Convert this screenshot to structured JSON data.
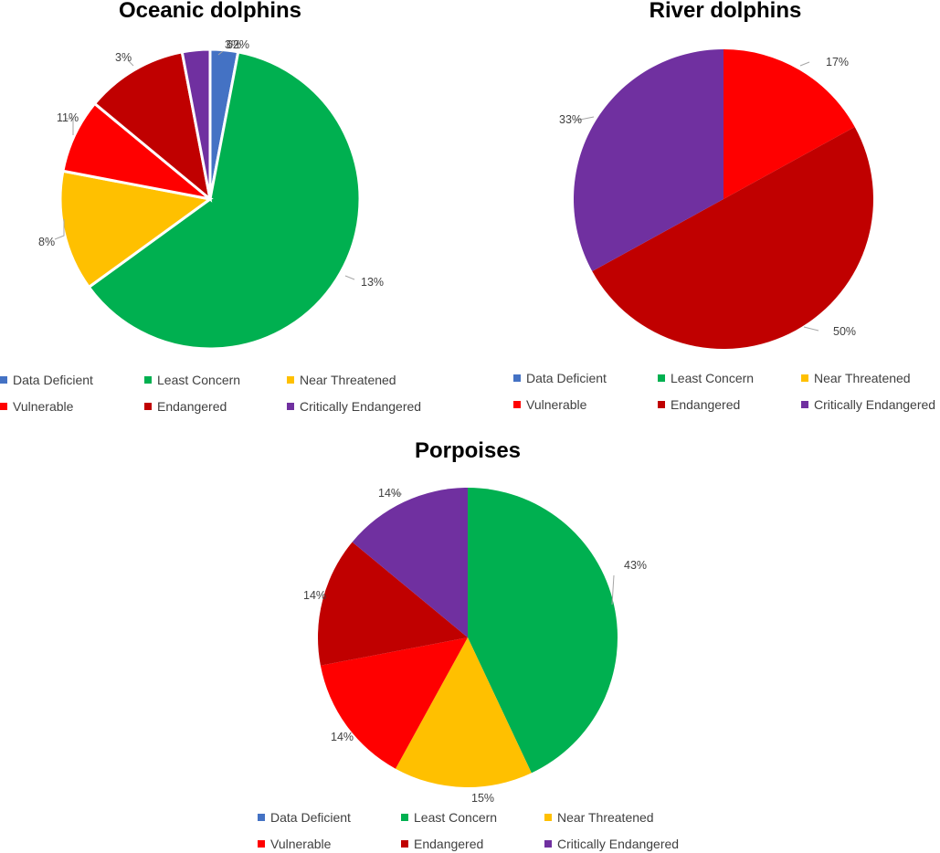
{
  "categories": [
    "Data Deficient",
    "Least Concern",
    "Near Threatened",
    "Vulnerable",
    "Endangered",
    "Critically Endangered"
  ],
  "colors": {
    "Data Deficient": "#4472C4",
    "Least Concern": "#00B050",
    "Near Threatened": "#FFC000",
    "Vulnerable": "#FF0000",
    "Endangered": "#C00000",
    "Critically Endangered": "#7030A0"
  },
  "chart_data": [
    {
      "type": "pie",
      "title": "Oceanic dolphins",
      "categories": [
        "Data Deficient",
        "Least Concern",
        "Near Threatened",
        "Vulnerable",
        "Endangered",
        "Critically Endangered"
      ],
      "values": [
        3,
        62,
        13,
        8,
        11,
        3
      ],
      "labels": [
        "3%",
        "62%",
        "13%",
        "8%",
        "11%",
        "3%"
      ],
      "legend": "bottom"
    },
    {
      "type": "pie",
      "title": "River dolphins",
      "categories": [
        "Vulnerable",
        "Endangered",
        "Critically Endangered"
      ],
      "values": [
        17,
        50,
        33
      ],
      "labels": [
        "17%",
        "50%",
        "33%"
      ],
      "legend": "bottom"
    },
    {
      "type": "pie",
      "title": "Porpoises",
      "categories": [
        "Least Concern",
        "Near Threatened",
        "Vulnerable",
        "Endangered",
        "Critically Endangered"
      ],
      "values": [
        43,
        15,
        14,
        14,
        14
      ],
      "labels": [
        "43%",
        "15%",
        "14%",
        "14%",
        "14%"
      ],
      "legend": "bottom"
    }
  ]
}
